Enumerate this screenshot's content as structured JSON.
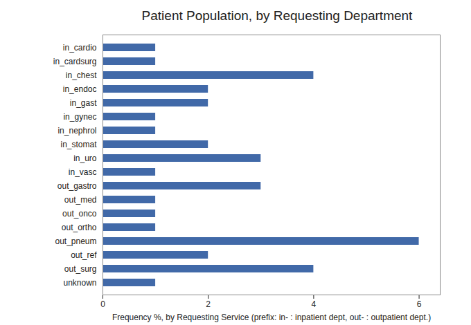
{
  "chart_data": {
    "type": "bar",
    "title": "Patient Population, by Requesting Department",
    "orientation": "horizontal",
    "x_label": "Frequency %, by Requesting Service (prefix: in- : inpatient dept, out- : outpatient dept.)",
    "categories": [
      "in_cardio",
      "in_cardsurg",
      "in_chest",
      "in_endoc",
      "in_gast",
      "in_gynec",
      "in_nephrol",
      "in_stomat",
      "in_uro",
      "in_vasc",
      "out_gastro",
      "out_med",
      "out_onco",
      "out_ortho",
      "out_pneum",
      "out_ref",
      "out_surg",
      "unknown"
    ],
    "values": [
      1,
      1,
      4,
      2,
      2,
      1,
      1,
      2,
      3,
      1,
      3,
      1,
      1,
      1,
      6,
      2,
      4,
      1
    ],
    "color": "#4169a8",
    "xlim": [
      0,
      6.4
    ],
    "xticks": [
      0,
      2,
      4,
      6
    ],
    "grid": false
  }
}
